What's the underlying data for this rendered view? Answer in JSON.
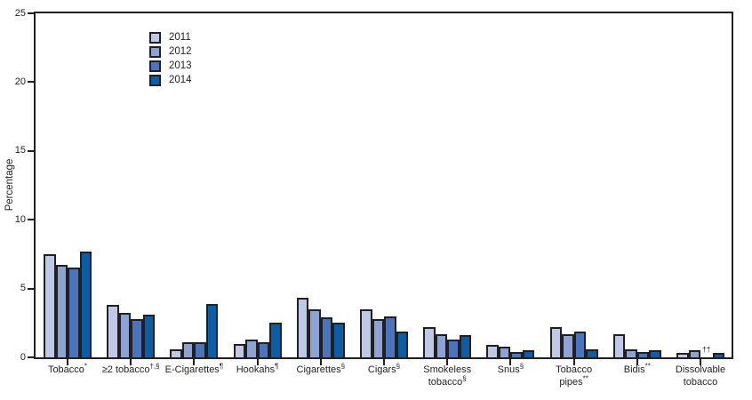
{
  "colors": {
    "axis": "#231f20",
    "text": "#231f20",
    "background": "#ffffff",
    "series": [
      "#bec9e5",
      "#8ca3d4",
      "#4a75bc",
      "#0b5da7"
    ]
  },
  "chart_data": {
    "type": "bar",
    "title": "",
    "xlabel": "",
    "ylabel": "Percentage",
    "ylim": [
      0,
      25
    ],
    "yticks": [
      0,
      5,
      10,
      15,
      20,
      25
    ],
    "grid": false,
    "legend_position": "inside-top-left",
    "series_names": [
      "2011",
      "2012",
      "2013",
      "2014"
    ],
    "categories": [
      {
        "lines": [
          {
            "text": "Tobacco",
            "sup": "*"
          }
        ],
        "values": [
          7.5,
          6.7,
          6.5,
          7.7
        ]
      },
      {
        "lines": [
          {
            "text": "≥2 tobacco",
            "sup": "†,§"
          }
        ],
        "values": [
          3.8,
          3.2,
          2.8,
          3.1
        ]
      },
      {
        "lines": [
          {
            "text": "E-Cigarettes",
            "sup": "¶"
          }
        ],
        "values": [
          0.6,
          1.1,
          1.1,
          3.9
        ]
      },
      {
        "lines": [
          {
            "text": "Hookahs",
            "sup": "¶"
          }
        ],
        "values": [
          1.0,
          1.3,
          1.1,
          2.5
        ]
      },
      {
        "lines": [
          {
            "text": "Cigarettes",
            "sup": "§"
          }
        ],
        "values": [
          4.3,
          3.5,
          2.9,
          2.5
        ]
      },
      {
        "lines": [
          {
            "text": "Cigars",
            "sup": "§"
          }
        ],
        "values": [
          3.5,
          2.8,
          3.0,
          1.9
        ]
      },
      {
        "lines": [
          {
            "text": "Smokeless",
            "sup": ""
          },
          {
            "text": "tobacco",
            "sup": "§"
          }
        ],
        "values": [
          2.2,
          1.7,
          1.3,
          1.6
        ]
      },
      {
        "lines": [
          {
            "text": "Snus",
            "sup": "§"
          }
        ],
        "values": [
          0.9,
          0.8,
          0.4,
          0.5
        ]
      },
      {
        "lines": [
          {
            "text": "Tobacco",
            "sup": ""
          },
          {
            "text": "pipes",
            "sup": "**"
          }
        ],
        "values": [
          2.2,
          1.7,
          1.9,
          0.6
        ]
      },
      {
        "lines": [
          {
            "text": "Bidis",
            "sup": "**"
          }
        ],
        "values": [
          1.7,
          0.6,
          0.4,
          0.5
        ]
      },
      {
        "lines": [
          {
            "text": "Dissolvable",
            "sup": ""
          },
          {
            "text": "tobacco",
            "sup": ""
          }
        ],
        "values": [
          0.3,
          0.5,
          null,
          0.3
        ],
        "missing_marker": "††",
        "missing_index": 2
      }
    ]
  }
}
